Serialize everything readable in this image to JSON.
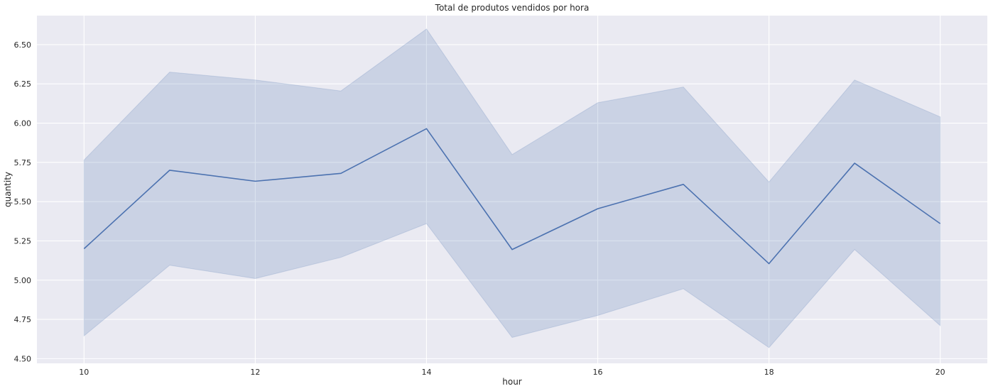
{
  "chart_data": {
    "type": "line",
    "title": "Total de produtos vendidos por hora",
    "xlabel": "hour",
    "ylabel": "quantity",
    "x": [
      10,
      11,
      12,
      13,
      14,
      15,
      16,
      17,
      18,
      19,
      20
    ],
    "series": [
      {
        "values": [
          5.2,
          5.7,
          5.63,
          5.68,
          5.965,
          5.195,
          5.455,
          5.61,
          5.105,
          5.745,
          5.36
        ],
        "ci_lower": [
          4.645,
          5.095,
          5.01,
          5.145,
          5.36,
          4.635,
          4.775,
          4.945,
          4.57,
          5.195,
          4.71
        ],
        "ci_upper": [
          5.765,
          6.325,
          6.275,
          6.205,
          6.6,
          5.8,
          6.13,
          6.23,
          5.625,
          6.275,
          6.04
        ]
      }
    ],
    "xlim": [
      9.45,
      20.55
    ],
    "ylim": [
      4.47,
      6.685
    ],
    "xticks": [
      "10",
      "12",
      "14",
      "16",
      "18",
      "20"
    ],
    "yticks": [
      "4.50",
      "4.75",
      "5.00",
      "5.25",
      "5.50",
      "5.75",
      "6.00",
      "6.25",
      "6.50"
    ],
    "grid": true,
    "colors": {
      "line": "#4c72b0",
      "plot_background": "#eaeaf2",
      "grid": "#ffffff",
      "text": "#262626"
    }
  }
}
